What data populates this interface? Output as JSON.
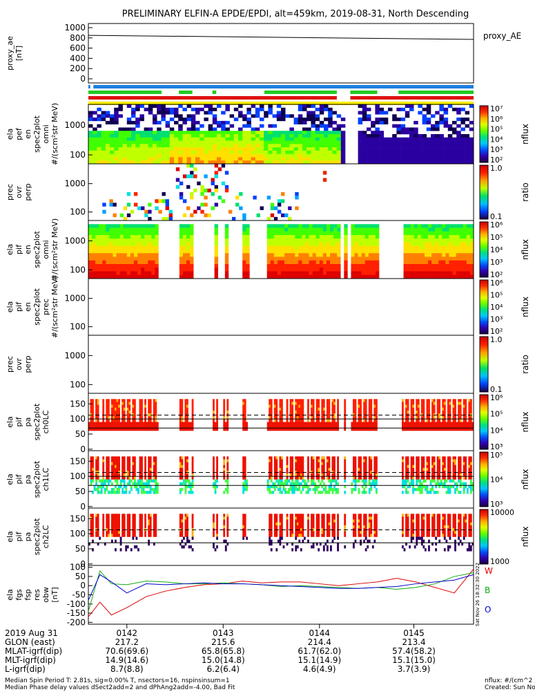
{
  "title": "PRELIMINARY ELFIN-A EPDE/EPDI, alt=459km, 2019-08-31, North Descending",
  "colors": {
    "bar_blue": "#1e7fe0",
    "bar_green": "#22cc22",
    "bar_red": "#dd1111",
    "bar_yellow": "#ffee00",
    "trace_w": "#dd0000",
    "trace_b": "#11aa11",
    "trace_o": "#0000cc"
  },
  "chart_data": [
    {
      "type": "line",
      "panel": "proxy_ae",
      "ylabel": "proxy_ae\n[nT]",
      "legend": [
        "proxy_AE"
      ],
      "ylim": [
        0,
        1000
      ],
      "yticks": [
        "0",
        "200",
        "400",
        "600",
        "800",
        "1000"
      ],
      "x": [
        0.0,
        1.0
      ],
      "values": [
        850,
        770
      ]
    },
    {
      "type": "bar",
      "panel": "status_bars",
      "series": [
        {
          "name": "blue",
          "segments": [
            [
              0.0,
              0.005
            ],
            [
              0.013,
              1.0
            ]
          ]
        },
        {
          "name": "green",
          "segments": [
            [
              0.0,
              0.19
            ],
            [
              0.235,
              0.27
            ],
            [
              0.322,
              0.332
            ],
            [
              0.457,
              0.645
            ],
            [
              0.68,
              0.75
            ],
            [
              0.805,
              1.0
            ]
          ]
        },
        {
          "name": "red",
          "segments": [
            [
              0.0,
              0.645
            ],
            [
              0.68,
              1.0
            ]
          ]
        },
        {
          "name": "yellow",
          "segments": [
            [
              0.0,
              1.0
            ]
          ]
        }
      ]
    },
    {
      "type": "heatmap",
      "panel": "ela_pef_en_spec2plot_omni",
      "ylabel": "ela\npef\nen\nspec2plot\nomni\n#/(scm²str MeV)",
      "yticks": [
        "100",
        "1000"
      ],
      "colorbar": {
        "label": "nflux",
        "ticks": [
          "10²",
          "10³",
          "10⁴",
          "10⁵",
          "10⁶",
          "10⁷"
        ]
      }
    },
    {
      "type": "heatmap",
      "panel": "ela_pef_prec_ovr_perp",
      "ylabel": "prec\novr\nperp",
      "yticks": [
        "100",
        "1000"
      ],
      "colorbar": {
        "label": "ratio",
        "ticks": [
          "0.1",
          "1.0"
        ]
      }
    },
    {
      "type": "heatmap",
      "panel": "ela_pif_en_spec2plot_omni",
      "ylabel": "ela\npif\nen\nspec2plot\nomni\n#/(scm²str MeV)",
      "yticks": [
        "100",
        "1000"
      ],
      "colorbar": {
        "label": "nflux",
        "ticks": [
          "10²",
          "10³",
          "10⁴",
          "10⁵",
          "10⁶"
        ]
      }
    },
    {
      "type": "heatmap",
      "panel": "ela_pif_en_spec2plot_prec",
      "ylabel": "ela\npif\nen\nspec2plot\nprec\n#/(scm²str MeV)",
      "yticks": [
        "100",
        "1000"
      ],
      "colorbar": {
        "label": "nflux",
        "ticks": [
          "10²",
          "10³",
          "10⁴",
          "10⁵",
          "10⁶"
        ]
      }
    },
    {
      "type": "heatmap",
      "panel": "ela_pif_prec_ovr_perp",
      "ylabel": "prec\novr\nperp",
      "yticks": [
        "100",
        "1000"
      ],
      "colorbar": {
        "label": "ratio",
        "ticks": [
          "0.1",
          "1.0"
        ]
      }
    },
    {
      "type": "heatmap",
      "panel": "ela_pif_pa_spec2plot_ch0LC",
      "ylabel": "ela\npif\npa\nspec2plot\nch0LC",
      "yticks": [
        "0",
        "50",
        "100",
        "150"
      ],
      "colorbar": {
        "label": "nflux",
        "ticks": [
          "10³",
          "10⁴",
          "10⁵",
          "10⁶"
        ]
      }
    },
    {
      "type": "heatmap",
      "panel": "ela_pif_pa_spec2plot_ch1LC",
      "ylabel": "ela\npif\npa\nspec2plot\nch1LC",
      "yticks": [
        "0",
        "50",
        "100",
        "150"
      ],
      "colorbar": {
        "label": "nflux",
        "ticks": [
          "10³",
          "10⁴",
          "10⁵"
        ]
      }
    },
    {
      "type": "heatmap",
      "panel": "ela_pif_pa_spec2plot_ch2LC",
      "ylabel": "ela\npif\npa\nspec2plot\nch2LC",
      "yticks": [
        "0",
        "50",
        "100",
        "150"
      ],
      "colorbar": {
        "label": "nflux",
        "ticks": [
          "1000",
          "10000"
        ]
      }
    },
    {
      "type": "line",
      "panel": "ela_fgs_fsp_res_obw",
      "ylabel": "ela\nfgs\nfsp\nres\nobw\n[nT]",
      "yticks": [
        "-200",
        "-150",
        "-100",
        "-50",
        "0",
        "50",
        "100"
      ],
      "ylim": [
        -210,
        110
      ],
      "side_text": "Sat Nov 26 18:32:30 2022",
      "x": [
        0.0,
        0.03,
        0.06,
        0.1,
        0.15,
        0.2,
        0.25,
        0.3,
        0.35,
        0.4,
        0.45,
        0.5,
        0.55,
        0.6,
        0.65,
        0.7,
        0.75,
        0.8,
        0.85,
        0.9,
        0.95,
        1.0
      ],
      "series": [
        {
          "name": "W",
          "values": [
            -170,
            -90,
            -160,
            -120,
            -60,
            -30,
            -10,
            5,
            10,
            25,
            15,
            20,
            20,
            10,
            0,
            10,
            20,
            40,
            20,
            -10,
            -40,
            90
          ]
        },
        {
          "name": "B",
          "values": [
            -140,
            80,
            10,
            5,
            25,
            20,
            10,
            10,
            15,
            10,
            5,
            -5,
            0,
            -5,
            -10,
            -15,
            -10,
            -20,
            -10,
            10,
            50,
            70
          ]
        },
        {
          "name": "O",
          "values": [
            -80,
            60,
            20,
            -40,
            10,
            5,
            10,
            15,
            10,
            10,
            5,
            0,
            -5,
            -10,
            -15,
            -15,
            -10,
            -5,
            10,
            20,
            30,
            60
          ]
        }
      ]
    }
  ],
  "time_axis": {
    "row_labels": [
      "2019 Aug 31",
      "GLON (east)",
      "MLAT-igrf(dip)",
      "MLT-igrf(dip)",
      "L-igrf(dip)"
    ],
    "columns": [
      {
        "x": 0.1,
        "values": [
          "0142",
          "217.2",
          "70.6(69.6)",
          "14.9(14.6)",
          "8.7(8.8)"
        ]
      },
      {
        "x": 0.35,
        "values": [
          "0143",
          "215.6",
          "65.8(65.8)",
          "15.0(14.8)",
          "6.2(6.4)"
        ]
      },
      {
        "x": 0.6,
        "values": [
          "0144",
          "214.4",
          "61.7(62.0)",
          "15.1(14.9)",
          "4.6(4.9)"
        ]
      },
      {
        "x": 0.845,
        "values": [
          "0145",
          "213.4",
          "57.4(58.2)",
          "15.1(15.0)",
          "3.7(3.9)"
        ]
      }
    ]
  },
  "footer": {
    "left_1": "Median Spin Period T: 2.81s, sig=0.00% T, nsectors=16, nspinsinsum=1",
    "left_2": "Median Phase delay values dSect2add=2 and dPhAng2add=-4.00, Bad Fit",
    "right_1": "nflux: #/(cm^2 s sr MeV)",
    "right_2": "Created: Sun Nov 27 03:32:20 2022"
  }
}
